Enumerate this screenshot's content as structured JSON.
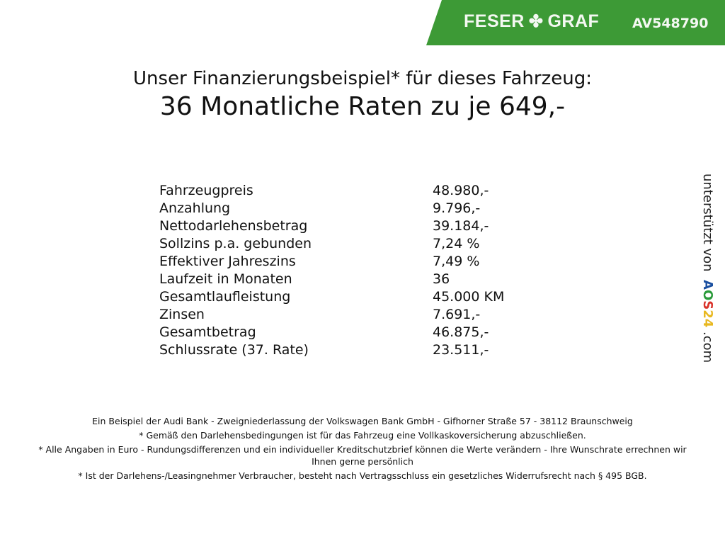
{
  "header": {
    "brand_left": "FESER",
    "brand_right": "GRAF",
    "brand_icon": "clover-icon",
    "code": "AV548790",
    "color": "#3d9a36"
  },
  "title": {
    "line1": "Unser Finanzierungsbeispiel* für dieses Fahrzeug:",
    "line2": "36 Monatliche Raten zu je 649,-"
  },
  "rows": [
    {
      "label": "Fahrzeugpreis",
      "value": "48.980,-"
    },
    {
      "label": "Anzahlung",
      "value": "9.796,-"
    },
    {
      "label": "Nettodarlehensbetrag",
      "value": "39.184,-"
    },
    {
      "label": "Sollzins p.a. gebunden",
      "value": "7,24 %"
    },
    {
      "label": "Effektiver Jahreszins",
      "value": "7,49 %"
    },
    {
      "label": "Laufzeit in Monaten",
      "value": "36"
    },
    {
      "label": "Gesamtlaufleistung",
      "value": "45.000 KM"
    },
    {
      "label": "Zinsen",
      "value": "7.691,-"
    },
    {
      "label": "Gesamtbetrag",
      "value": "46.875,-"
    },
    {
      "label": "Schlussrate (37. Rate)",
      "value": "23.511,-"
    }
  ],
  "side": {
    "prefix": "unterstützt von",
    "logo": [
      "A",
      "O",
      "S",
      "2",
      "4"
    ],
    "suffix": ".com"
  },
  "footer": [
    "Ein Beispiel der Audi Bank - Zweigniederlassung der Volkswagen Bank GmbH - Gifhorner Straße 57 - 38112 Braunschweig",
    "* Gemäß den Darlehensbedingungen ist für das Fahrzeug eine Vollkaskoversicherung abzuschließen.",
    "* Alle Angaben in Euro - Rundungsdifferenzen und ein individueller Kreditschutzbrief können die Werte verändern - Ihre Wunschrate errechnen wir Ihnen gerne persönlich",
    "* Ist der Darlehens-/Leasingnehmer Verbraucher, besteht nach Vertragsschluss ein gesetzliches Widerrufsrecht nach § 495 BGB."
  ]
}
